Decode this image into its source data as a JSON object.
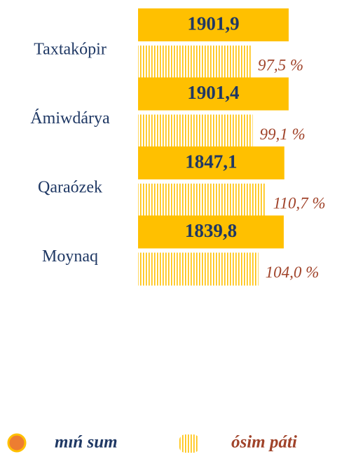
{
  "chart_data": {
    "type": "bar",
    "categories": [
      "Taxtakópir",
      "Ámiwdárya",
      "Qaraózek",
      "Moynaq"
    ],
    "series": [
      {
        "name": "mıń sum",
        "color": "#ffc000",
        "values": [
          1901.9,
          1901.4,
          1847.1,
          1839.8
        ],
        "value_labels": [
          "1901,9",
          "1901,4",
          "1847,1",
          "1839,8"
        ]
      },
      {
        "name": "ósim páti",
        "color": "#ffc000",
        "axis": "x2",
        "values": [
          97.5,
          99.1,
          110.7,
          104.0
        ],
        "value_labels": [
          "97,5 %",
          "99,1 %",
          "110,7 %",
          "104,0 %"
        ]
      }
    ],
    "xlim": [
      0,
      2000
    ],
    "x2lim": [
      0,
      120
    ],
    "legend": "bottom"
  }
}
